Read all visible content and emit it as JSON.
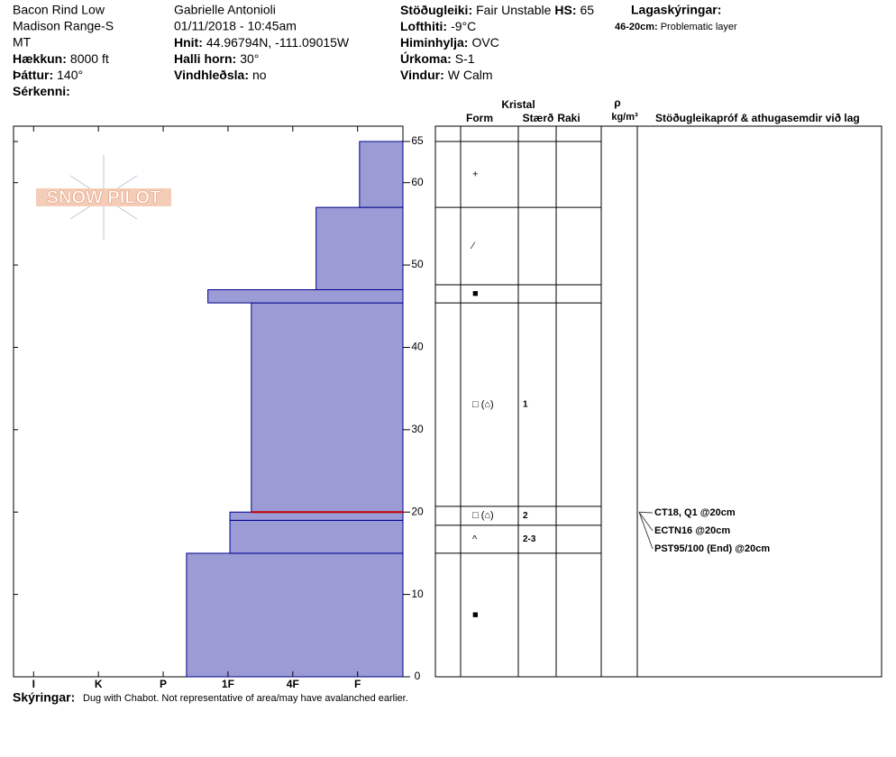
{
  "header": {
    "col1": [
      {
        "text": "Bacon Rind Low"
      },
      {
        "text": "Madison Range-S"
      },
      {
        "text": "MT"
      },
      {
        "label": "Hækkun:",
        "value": "8000 ft"
      },
      {
        "label": "Þáttur:",
        "value": "140°"
      },
      {
        "label": "Sérkenni:"
      }
    ],
    "col2": [
      {
        "text": "Gabrielle Antonioli"
      },
      {
        "text": "01/11/2018 - 10:45am"
      },
      {
        "label": "Hnit:",
        "value": "44.96794N, -111.09015W"
      },
      {
        "label": "Halli horn:",
        "value": "30°"
      },
      {
        "label": "Vindhleðsla:",
        "value": "no"
      }
    ],
    "col3": [
      {
        "label": "Stöðugleiki:",
        "value": "Fair Unstable",
        "label2": "HS:",
        "value2": 65
      },
      {
        "label": "Lofthiti:",
        "value": "-9°C"
      },
      {
        "label": "Himinhylja:",
        "value": "OVC"
      },
      {
        "label": "Úrkoma:",
        "value": "S-1"
      },
      {
        "label": "Vindur:",
        "value": "W Calm"
      }
    ],
    "legend_title": "Lagaskýringar:",
    "legend_items": [
      {
        "label": "46-20cm:",
        "value": "Problematic layer"
      }
    ]
  },
  "logo": "SNOW PILOT",
  "table_headers": {
    "crystal": "Kristal",
    "form": "Form",
    "size": "Stærð",
    "moisture": "Raki",
    "rho": "ρ",
    "density_unit": "kg/m³",
    "tests": "Stöðugleikapróf & athugasemdir við lag"
  },
  "chart_data": {
    "type": "layers",
    "color": "#9b9bd6",
    "ylim": [
      0,
      65
    ],
    "yticks": [
      0,
      10,
      20,
      30,
      40,
      50,
      60,
      65
    ],
    "xlim": [
      0.3,
      6.31
    ],
    "xticks": [
      {
        "value": 6,
        "label": "I"
      },
      {
        "value": 5,
        "label": "K"
      },
      {
        "value": 4,
        "label": "P"
      },
      {
        "value": 3,
        "label": "1F"
      },
      {
        "value": 2,
        "label": "4F"
      },
      {
        "value": 1,
        "label": "F"
      }
    ],
    "layers": [
      {
        "bottom": 0,
        "top": 15,
        "hardness": 3.64
      },
      {
        "bottom": 15,
        "top": 19,
        "hardness": 2.97
      },
      {
        "bottom": 19,
        "top": 20,
        "hardness": 2.97
      },
      {
        "bottom": 20,
        "top": 45.4,
        "hardness": 2.64
      },
      {
        "bottom": 45.4,
        "top": 47,
        "hardness": 3.31
      },
      {
        "bottom": 47,
        "top": 57,
        "hardness": 1.64
      },
      {
        "bottom": 57,
        "top": 65,
        "hardness": 0.97
      }
    ],
    "flag_height": 20,
    "flag_color": "#c00000",
    "grain_layers": [
      {
        "bottom": 57,
        "top": 65,
        "form": "+"
      },
      {
        "bottom": 47.6,
        "top": 57,
        "form": "⁄"
      },
      {
        "bottom": 45.4,
        "top": 47.6,
        "form": "■"
      },
      {
        "bottom": 20.7,
        "top": 45.4,
        "form": "□ (⌂)",
        "size": "1"
      },
      {
        "bottom": 18.4,
        "top": 20.7,
        "form": "□ (⌂)",
        "size": "2"
      },
      {
        "bottom": 15,
        "top": 18.4,
        "form": "^",
        "size": "2-3"
      },
      {
        "bottom": 0,
        "top": 15,
        "form": "■"
      }
    ],
    "tests": [
      {
        "height": 20,
        "text": "CT18, Q1 @20cm"
      },
      {
        "height": 20,
        "text": "ECTN16 @20cm"
      },
      {
        "height": 20,
        "text": "PST95/100 (End) @20cm"
      }
    ]
  },
  "footer": {
    "label": "Skýringar:",
    "text": "Dug with Chabot.  Not representative of area/may have avalanched earlier."
  }
}
